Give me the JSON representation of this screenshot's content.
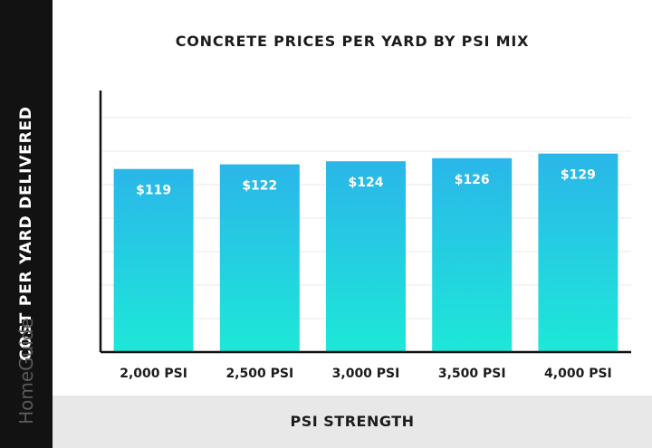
{
  "chart_data": {
    "type": "bar",
    "title": "CONCRETE PRICES PER YARD BY PSI MIX",
    "xlabel": "PSI STRENGTH",
    "ylabel": "COST PER YARD DELIVERED",
    "categories": [
      "2,000 PSI",
      "2,500 PSI",
      "3,000 PSI",
      "3,500 PSI",
      "4,000 PSI"
    ],
    "values": [
      119,
      122,
      124,
      126,
      129
    ],
    "data_labels": [
      "$119",
      "$122",
      "$124",
      "$126",
      "$129"
    ],
    "ylim": [
      0,
      170
    ],
    "grid": true,
    "colors": {
      "bar_top": "#2ab6e9",
      "bar_bottom": "#1ee8d8",
      "axis": "#111111",
      "grid": "#e9e9e9"
    }
  },
  "watermark": "HomeGuide"
}
